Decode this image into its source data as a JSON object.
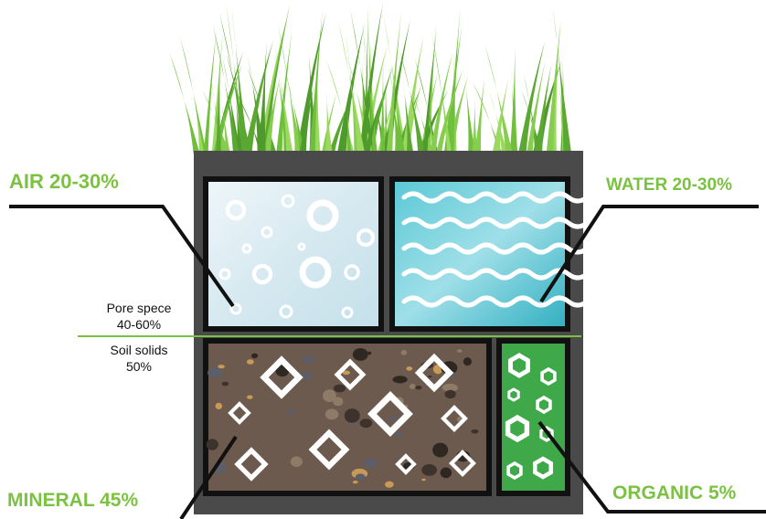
{
  "labels": {
    "air": "AIR 20-30%",
    "water": "WATER 20-30%",
    "mineral": "MINERAL 45%",
    "organic": "ORGANIC 5%"
  },
  "pore_space": {
    "line1": "Pore spece",
    "line2": "40-60%"
  },
  "soil_solids": {
    "line1": "Soil solids",
    "line2": "50%"
  },
  "colors": {
    "label_green": "#7cc242",
    "grass": "#6fbf3c",
    "frame": "#4a4a4a",
    "air_fill": "#dfeef3",
    "water_fill": "#3fb8c8",
    "mineral_fill": "#6b5a4d",
    "organic_fill": "#3fa94a",
    "divider": "#7cc242"
  },
  "icons": [
    "grass-icon",
    "air-bubble-icon",
    "water-wave-icon",
    "mineral-diamond-icon",
    "organic-hexagon-icon"
  ]
}
